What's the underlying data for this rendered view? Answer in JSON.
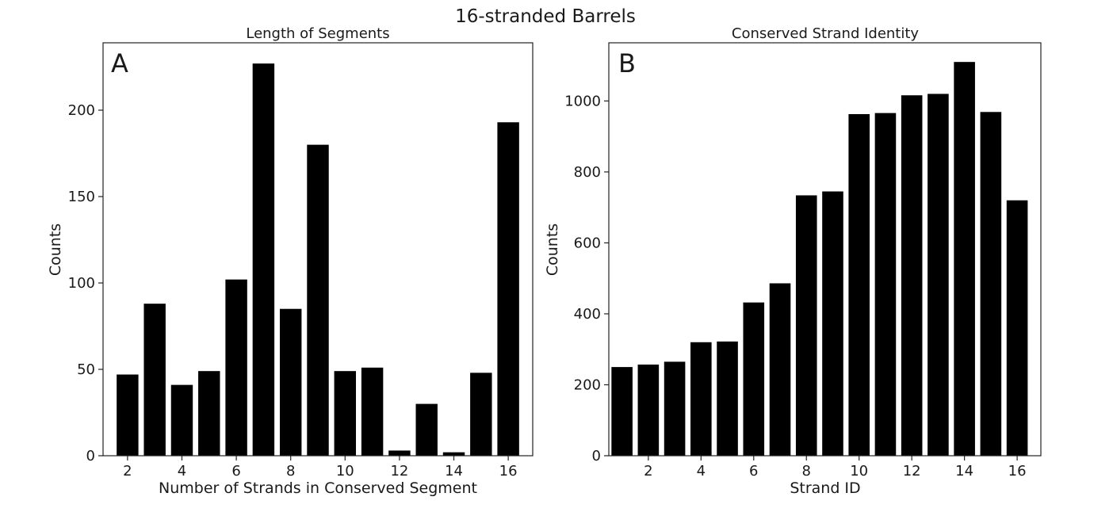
{
  "figure": {
    "suptitle": "16-stranded Barrels"
  },
  "chart_data": [
    {
      "type": "bar",
      "panel_letter": "A",
      "title": "Length of Segments",
      "xlabel": "Number of Strands in Conserved Segment",
      "ylabel": "Counts",
      "x": [
        2,
        3,
        4,
        5,
        6,
        7,
        8,
        9,
        10,
        11,
        12,
        13,
        14,
        15,
        16
      ],
      "values": [
        47,
        88,
        41,
        49,
        102,
        227,
        85,
        180,
        49,
        51,
        3,
        30,
        2,
        48,
        193
      ],
      "xticks": [
        2,
        4,
        6,
        8,
        10,
        12,
        14,
        16
      ],
      "yticks": [
        0,
        50,
        100,
        150,
        200
      ],
      "xlim": [
        1.1,
        16.9
      ],
      "ylim": [
        0,
        239
      ],
      "color": "#000000",
      "grid": false
    },
    {
      "type": "bar",
      "panel_letter": "B",
      "title": "Conserved Strand Identity",
      "xlabel": "Strand ID",
      "ylabel": "Counts",
      "x": [
        1,
        2,
        3,
        4,
        5,
        6,
        7,
        8,
        9,
        10,
        11,
        12,
        13,
        14,
        15,
        16
      ],
      "values": [
        250,
        257,
        265,
        320,
        322,
        432,
        486,
        734,
        745,
        963,
        966,
        1016,
        1020,
        1110,
        969,
        720
      ],
      "xticks": [
        2,
        4,
        6,
        8,
        10,
        12,
        14,
        16
      ],
      "yticks": [
        0,
        200,
        400,
        600,
        800,
        1000
      ],
      "xlim": [
        0.5,
        16.9
      ],
      "ylim": [
        0,
        1164
      ],
      "color": "#000000",
      "grid": false
    }
  ]
}
